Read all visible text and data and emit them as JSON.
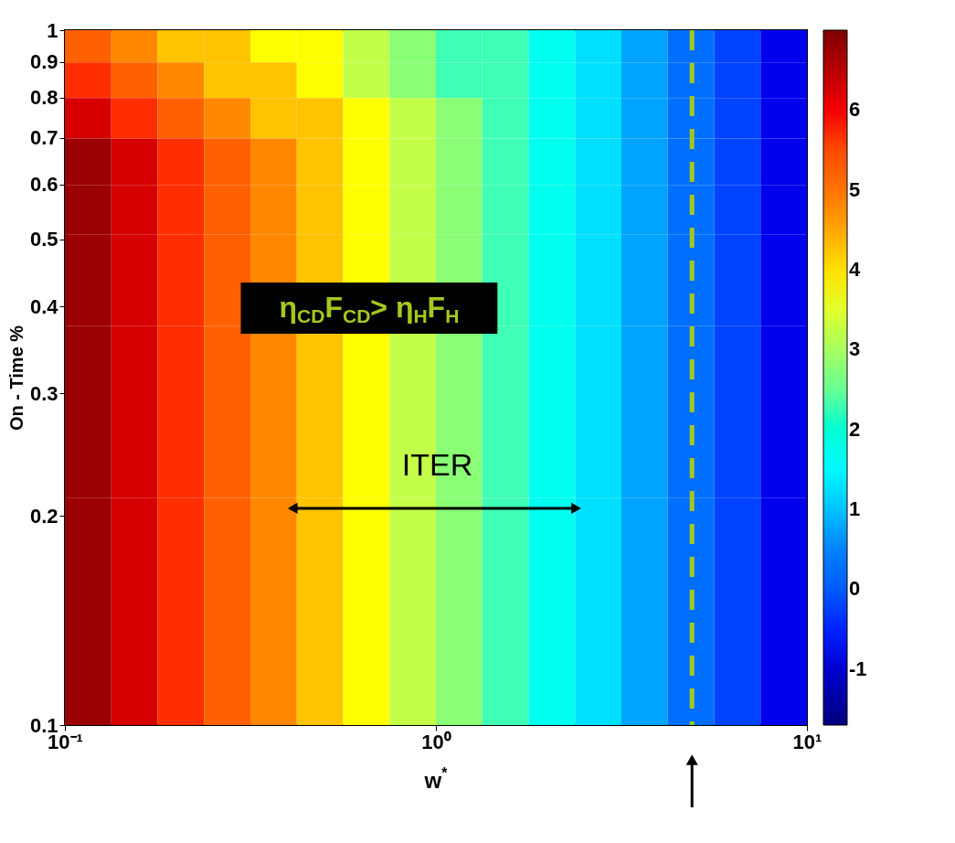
{
  "chart_data": {
    "type": "heatmap",
    "xlabel": "w$^{*}$",
    "ylabel": "On - Time %",
    "x": [
      0.1155,
      0.154,
      0.2054,
      0.2738,
      0.3652,
      0.487,
      0.6494,
      0.866,
      1.1548,
      1.5399,
      2.0535,
      2.7384,
      3.6517,
      4.8697,
      6.4938,
      8.6596
    ],
    "y": [
      0.95,
      0.85,
      0.75,
      0.65,
      0.55,
      0.47,
      0.3,
      0.15
    ],
    "cells": [
      [
        5.25,
        4.75,
        4.25,
        4.25,
        3.75,
        3.75,
        3.25,
        2.75,
        2.25,
        2.25,
        1.75,
        1.25,
        0.75,
        0.25,
        -0.25,
        -0.75
      ],
      [
        5.75,
        5.25,
        4.75,
        4.25,
        4.25,
        3.75,
        3.25,
        2.75,
        2.25,
        2.25,
        1.75,
        1.25,
        0.75,
        0.25,
        -0.25,
        -0.75
      ],
      [
        6.25,
        5.75,
        5.25,
        4.75,
        4.25,
        4.25,
        3.75,
        3.25,
        2.75,
        2.25,
        1.75,
        1.25,
        0.75,
        0.25,
        -0.25,
        -0.75
      ],
      [
        6.75,
        6.25,
        5.75,
        5.25,
        4.75,
        4.25,
        3.75,
        3.25,
        2.75,
        2.25,
        1.75,
        1.25,
        0.75,
        0.25,
        -0.25,
        -0.75
      ],
      [
        6.75,
        6.25,
        5.75,
        5.25,
        4.75,
        4.25,
        3.75,
        3.25,
        2.75,
        2.25,
        1.75,
        1.25,
        0.75,
        0.25,
        -0.25,
        -0.75
      ],
      [
        6.75,
        6.25,
        5.75,
        5.25,
        4.75,
        4.25,
        3.75,
        3.25,
        2.75,
        2.25,
        1.75,
        1.25,
        0.75,
        0.25,
        -0.25,
        -0.75
      ],
      [
        6.75,
        6.25,
        5.75,
        5.25,
        4.75,
        4.25,
        3.75,
        3.25,
        2.75,
        2.25,
        1.75,
        1.25,
        0.75,
        0.25,
        -0.25,
        -0.75
      ],
      [
        6.75,
        6.25,
        5.75,
        5.25,
        4.75,
        4.25,
        3.75,
        3.25,
        2.75,
        2.25,
        1.75,
        1.25,
        0.75,
        0.25,
        -0.25,
        -0.75
      ]
    ],
    "log": "xy",
    "xlim": [
      0.1,
      10
    ],
    "xticks": [
      {
        "value": 0.1,
        "label": "10⁻¹"
      },
      {
        "value": 1,
        "label": "10⁰"
      },
      {
        "value": 10,
        "label": "10¹"
      }
    ],
    "ylim": [
      0.1,
      1
    ],
    "yticks": [
      0.1,
      0.2,
      0.3,
      0.4,
      0.5,
      0.6,
      0.7,
      0.8,
      0.9,
      1
    ],
    "clim": [
      -1.7,
      7.0
    ],
    "cticks": [
      -1,
      0,
      1,
      2,
      3,
      4,
      5,
      6
    ],
    "ref_lines": [
      {
        "axis": "x",
        "value": 4.9,
        "label": null,
        "color": "#a4c81e",
        "line_style": "dashed"
      }
    ],
    "annotations": [
      "η$_{CD}$F$_{CD}$> η$_{H}$F$_{H}$",
      "ITER"
    ]
  }
}
